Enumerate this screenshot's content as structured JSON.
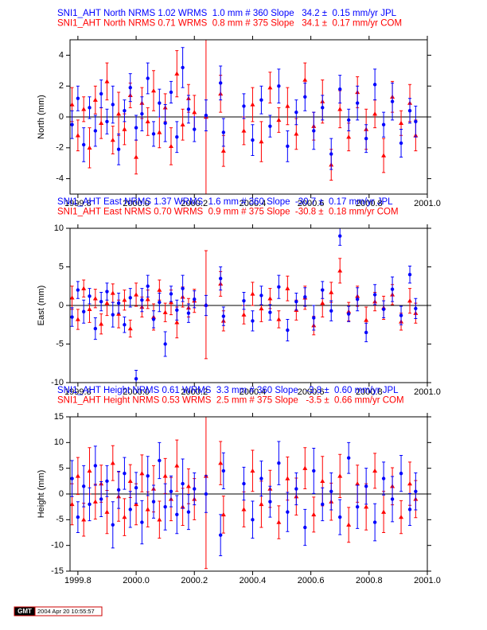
{
  "chart_data": [
    {
      "type": "scatter",
      "ylabel": "North (mm)",
      "xlim": [
        1999.773,
        2001.0
      ],
      "xticks": [
        1999.8,
        {
          "value": 2000,
          "label": "2000.0"
        },
        2000.2,
        2000.4,
        2000.6,
        2000.8,
        {
          "value": 2001,
          "label": "2001.0"
        }
      ],
      "ylim": [
        -5,
        5
      ],
      "yticks": [
        -4,
        -2,
        0,
        2,
        4
      ],
      "x": [
        1999.78,
        1999.8,
        1999.82,
        1999.84,
        1999.86,
        1999.88,
        1999.9,
        1999.92,
        1999.94,
        1999.96,
        1999.98,
        2000.0,
        2000.02,
        2000.04,
        2000.06,
        2000.08,
        2000.1,
        2000.12,
        2000.14,
        2000.16,
        2000.18,
        2000.2,
        2000.24,
        2000.29,
        2000.3,
        2000.37,
        2000.4,
        2000.43,
        2000.46,
        2000.49,
        2000.52,
        2000.55,
        2000.58,
        2000.61,
        2000.64,
        2000.67,
        2000.7,
        2000.73,
        2000.76,
        2000.79,
        2000.82,
        2000.85,
        2000.88,
        2000.91,
        2000.94,
        2000.96
      ],
      "series": [
        {
          "name": "SNI1_AHT North NRMS 1.02 WRMS  1.0 mm # 360 Slope   34.2 ±  0.15 mm/yr JPL",
          "color": "#0000ff",
          "marker": "circle",
          "values": [
            -0.5,
            1.2,
            -1.8,
            0.6,
            -0.9,
            1.5,
            -0.3,
            0.8,
            -2.1,
            0.4,
            1.9,
            -0.7,
            0.2,
            2.5,
            -1.1,
            0.9,
            -0.4,
            1.6,
            -1.3,
            3.2,
            0.5,
            -0.8,
            0.1,
            2.2,
            -1.0,
            0.7,
            -1.5,
            1.1,
            -0.6,
            2.0,
            -1.9,
            0.3,
            1.3,
            -0.9,
            0.6,
            -2.4,
            1.8,
            -0.2,
            0.9,
            -1.4,
            2.1,
            -0.5,
            1.0,
            -1.7,
            0.4,
            -0.3
          ],
          "errors": [
            0.9,
            0.8,
            1.1,
            0.7,
            1.0,
            0.9,
            0.8,
            1.2,
            1.0,
            0.7,
            0.9,
            0.8,
            1.1,
            1.0,
            0.8,
            0.9,
            1.2,
            0.7,
            1.0,
            1.3,
            0.9,
            0.8,
            1.0,
            1.1,
            0.9,
            0.8,
            1.0,
            0.9,
            0.7,
            1.1,
            1.0,
            0.8,
            0.9,
            1.2,
            0.8,
            1.0,
            0.9,
            0.7,
            1.1,
            0.9,
            1.0,
            0.8,
            1.2,
            0.9,
            0.8,
            1.0
          ]
        },
        {
          "name": "SNI1_AHT North NRMS 0.71 WRMS  0.8 mm # 375 Slope   34.1 ±  0.17 mm/yr COM",
          "color": "#ff0000",
          "marker": "triangle",
          "values": [
            0.8,
            -1.2,
            0.5,
            -2.0,
            1.1,
            -0.4,
            2.3,
            -1.5,
            0.2,
            -0.8,
            1.4,
            -2.6,
            0.9,
            -0.3,
            1.7,
            -1.0,
            0.6,
            -1.9,
            2.8,
            -0.5,
            1.2,
            0.3,
            0.0,
            1.5,
            -2.2,
            -0.9,
            0.8,
            -1.6,
            1.9,
            -0.2,
            0.7,
            -1.1,
            2.4,
            -0.6,
            1.0,
            -3.1,
            0.5,
            -1.3,
            1.6,
            -0.8,
            0.2,
            -2.5,
            1.3,
            -0.4,
            0.9,
            -1.2
          ],
          "errors": [
            1.1,
            1.0,
            0.8,
            1.3,
            0.9,
            1.0,
            1.2,
            0.9,
            1.4,
            1.0,
            0.8,
            1.1,
            1.0,
            0.9,
            1.3,
            1.0,
            0.9,
            1.2,
            1.5,
            1.0,
            0.9,
            1.1,
            5.0,
            1.2,
            1.0,
            0.9,
            1.1,
            1.3,
            1.0,
            0.8,
            1.2,
            1.0,
            1.1,
            0.9,
            1.4,
            1.0,
            1.2,
            0.9,
            1.0,
            1.3,
            0.9,
            1.1,
            1.0,
            0.8,
            1.2,
            1.0
          ]
        }
      ]
    },
    {
      "type": "scatter",
      "ylabel": "East (mm)",
      "xlim": [
        1999.773,
        2001.0
      ],
      "xticks": [
        1999.8,
        {
          "value": 2000,
          "label": "2000.0"
        },
        2000.2,
        2000.4,
        2000.6,
        2000.8,
        {
          "value": 2001,
          "label": "2001.0"
        }
      ],
      "ylim": [
        -10,
        10
      ],
      "yticks": [
        -10,
        -5,
        0,
        5,
        10
      ],
      "x": [
        1999.78,
        1999.8,
        1999.82,
        1999.84,
        1999.86,
        1999.88,
        1999.9,
        1999.92,
        1999.94,
        1999.96,
        1999.98,
        2000.0,
        2000.02,
        2000.04,
        2000.06,
        2000.08,
        2000.1,
        2000.12,
        2000.14,
        2000.16,
        2000.18,
        2000.2,
        2000.24,
        2000.29,
        2000.3,
        2000.37,
        2000.4,
        2000.43,
        2000.46,
        2000.49,
        2000.52,
        2000.55,
        2000.58,
        2000.61,
        2000.64,
        2000.67,
        2000.7,
        2000.73,
        2000.76,
        2000.79,
        2000.82,
        2000.85,
        2000.88,
        2000.91,
        2000.94,
        2000.96
      ],
      "series": [
        {
          "name": "SNI1_AHT East NRMS 1.37 WRMS  1.6 mm # 360 Slope  -30.7 ±  0.17 mm/yr JPL",
          "color": "#0000ff",
          "marker": "circle",
          "values": [
            -1.5,
            2.0,
            -0.8,
            1.2,
            -3.0,
            0.5,
            1.8,
            -1.2,
            0.3,
            -2.5,
            1.0,
            -9.5,
            0.7,
            2.5,
            -1.8,
            0.4,
            -5.0,
            1.5,
            -0.6,
            2.2,
            -1.0,
            0.8,
            0.0,
            3.5,
            -1.4,
            0.6,
            -2.0,
            1.3,
            -0.9,
            2.4,
            -3.2,
            0.5,
            1.1,
            -1.6,
            2.0,
            -0.7,
            9.0,
            -1.1,
            0.8,
            -3.5,
            1.4,
            -0.5,
            2.1,
            -1.3,
            4.0,
            -0.4
          ],
          "errors": [
            1.2,
            1.1,
            1.5,
            1.0,
            1.4,
            1.2,
            1.1,
            1.6,
            1.3,
            1.0,
            1.2,
            1.1,
            1.5,
            1.4,
            1.1,
            1.2,
            1.6,
            1.0,
            1.3,
            1.7,
            1.2,
            1.1,
            1.3,
            1.5,
            1.2,
            1.1,
            1.3,
            1.2,
            1.0,
            1.5,
            1.4,
            1.1,
            1.2,
            1.6,
            1.1,
            1.3,
            1.2,
            1.0,
            1.5,
            1.2,
            1.3,
            1.1,
            1.6,
            1.2,
            1.1,
            1.3
          ]
        },
        {
          "name": "SNI1_AHT East NRMS 0.70 WRMS  0.9 mm # 375 Slope  -30.8 ±  0.18 mm/yr COM",
          "color": "#ff0000",
          "marker": "triangle",
          "values": [
            1.0,
            -1.8,
            2.2,
            -0.5,
            0.9,
            -2.4,
            0.3,
            1.6,
            -1.1,
            0.7,
            -3.0,
            1.4,
            -0.2,
            0.8,
            -1.5,
            2.0,
            -0.9,
            0.4,
            -2.2,
            1.1,
            -0.3,
            0.6,
            0.1,
            2.8,
            -2.0,
            -1.2,
            1.5,
            -0.4,
            0.9,
            -1.8,
            2.2,
            -0.6,
            1.0,
            -2.6,
            0.3,
            1.7,
            4.5,
            -0.8,
            1.2,
            -1.9,
            0.5,
            -0.3,
            1.4,
            -2.1,
            0.6,
            -1.0
          ],
          "errors": [
            1.5,
            1.3,
            1.1,
            1.7,
            1.2,
            1.3,
            1.6,
            1.2,
            1.8,
            1.3,
            1.1,
            1.5,
            1.3,
            1.2,
            1.7,
            1.3,
            1.2,
            1.6,
            2.0,
            1.3,
            1.2,
            1.5,
            7.0,
            1.6,
            1.3,
            1.2,
            1.5,
            1.7,
            1.3,
            1.1,
            1.6,
            1.3,
            1.5,
            1.2,
            1.8,
            1.3,
            1.6,
            1.2,
            1.3,
            1.7,
            1.2,
            1.5,
            1.3,
            1.1,
            1.6,
            1.3
          ]
        }
      ]
    },
    {
      "type": "scatter",
      "ylabel": "Height (mm)",
      "xlim": [
        1999.773,
        2001.0
      ],
      "xticks": [
        1999.8,
        {
          "value": 2000,
          "label": "2000.0"
        },
        2000.2,
        2000.4,
        2000.6,
        2000.8,
        {
          "value": 2001,
          "label": "2001.0"
        }
      ],
      "ylim": [
        -15,
        15
      ],
      "yticks": [
        -15,
        -10,
        -5,
        0,
        5,
        10,
        15
      ],
      "x": [
        1999.78,
        1999.8,
        1999.82,
        1999.84,
        1999.86,
        1999.88,
        1999.9,
        1999.92,
        1999.94,
        1999.96,
        1999.98,
        2000.0,
        2000.02,
        2000.04,
        2000.06,
        2000.08,
        2000.1,
        2000.12,
        2000.14,
        2000.16,
        2000.18,
        2000.2,
        2000.24,
        2000.29,
        2000.3,
        2000.37,
        2000.4,
        2000.43,
        2000.46,
        2000.49,
        2000.52,
        2000.55,
        2000.58,
        2000.61,
        2000.64,
        2000.67,
        2000.7,
        2000.73,
        2000.76,
        2000.79,
        2000.82,
        2000.85,
        2000.88,
        2000.91,
        2000.94,
        2000.96
      ],
      "series": [
        {
          "name": "SNI1_AHT Height NRMS 0.61 WRMS  3.3 mm # 360 Slope   -3.8 ±  0.60 mm/yr JPL",
          "color": "#0000ff",
          "marker": "circle",
          "values": [
            3.0,
            -4.5,
            1.5,
            -2.0,
            5.5,
            -1.0,
            2.5,
            -6.0,
            0.8,
            4.0,
            -3.0,
            1.2,
            -5.5,
            3.5,
            -1.5,
            6.5,
            -2.5,
            0.5,
            -4.0,
            2.0,
            -3.5,
            1.0,
            0.0,
            -8.0,
            4.5,
            2.0,
            -5.0,
            3.0,
            -1.5,
            6.0,
            -3.5,
            1.0,
            -6.5,
            4.5,
            -2.0,
            0.5,
            -4.5,
            7.0,
            -2.5,
            1.5,
            -5.5,
            3.0,
            -1.0,
            4.0,
            -3.0,
            0.5
          ],
          "errors": [
            3.5,
            3.0,
            4.0,
            3.2,
            3.8,
            3.4,
            3.0,
            4.5,
            3.6,
            3.1,
            3.5,
            3.0,
            4.2,
            3.8,
            3.2,
            3.5,
            4.5,
            3.0,
            3.7,
            4.8,
            3.4,
            3.1,
            3.6,
            4.0,
            3.5,
            3.2,
            3.6,
            3.4,
            3.0,
            4.2,
            3.8,
            3.1,
            3.5,
            4.4,
            3.2,
            3.6,
            3.4,
            3.0,
            4.2,
            3.5,
            3.6,
            3.2,
            4.4,
            3.5,
            3.1,
            3.6
          ]
        },
        {
          "name": "SNI1_AHT Height NRMS 0.53 WRMS  2.5 mm # 375 Slope   -3.5 ±  0.66 mm/yr COM",
          "color": "#ff0000",
          "marker": "triangle",
          "values": [
            -2.0,
            3.5,
            -5.0,
            4.5,
            -1.5,
            2.0,
            -3.5,
            6.0,
            -0.5,
            -4.5,
            2.5,
            -2.0,
            4.0,
            -3.0,
            1.0,
            -5.0,
            3.5,
            -1.0,
            5.5,
            -2.5,
            1.5,
            -1.0,
            3.5,
            6.0,
            -4.0,
            -3.0,
            4.5,
            -2.0,
            1.0,
            -5.5,
            3.0,
            -0.5,
            5.0,
            -4.0,
            2.5,
            -1.5,
            3.5,
            -6.0,
            2.0,
            -2.5,
            4.5,
            -3.5,
            1.5,
            -4.5,
            2.0,
            -1.0
          ],
          "errors": [
            4.0,
            3.6,
            3.2,
            4.5,
            3.4,
            3.6,
            4.2,
            3.4,
            4.8,
            3.6,
            3.2,
            4.0,
            3.6,
            3.4,
            4.5,
            3.6,
            3.4,
            4.2,
            5.0,
            3.6,
            3.4,
            4.0,
            18.0,
            4.2,
            3.6,
            3.4,
            4.0,
            4.5,
            3.6,
            3.2,
            4.2,
            3.6,
            4.0,
            3.4,
            4.8,
            3.6,
            4.2,
            3.4,
            3.6,
            4.5,
            3.4,
            4.0,
            3.6,
            3.2,
            4.2,
            3.6
          ]
        }
      ]
    }
  ],
  "footer": {
    "logo": "GMT",
    "timestamp": "2004 Apr 20 10:55:57"
  }
}
